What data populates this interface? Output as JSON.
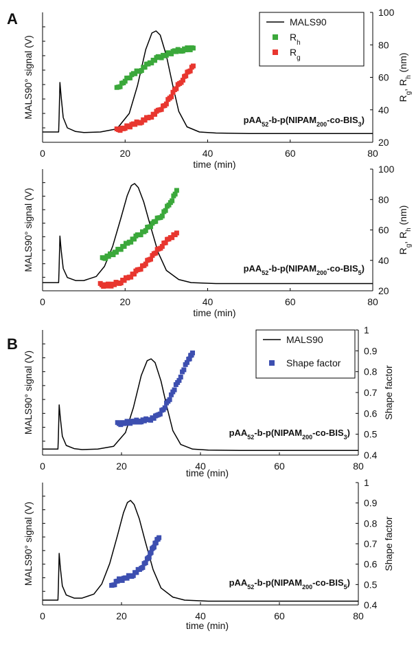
{
  "figure": {
    "panel_letters": [
      "A",
      "B"
    ]
  },
  "chart_data": [
    {
      "type": "line",
      "panel": "A",
      "annotation": {
        "base": "pAA",
        "s1": "52",
        "mid": "-b-p(NIPAM",
        "s2": "200",
        "mid2": "-co-BIS",
        "s3": "3",
        "end": ")"
      },
      "xlabel": "time (min)",
      "ylabel_left": "MALS90° signal (V)",
      "ylabel_right": {
        "a": "R",
        "asub": "g",
        "sep": ", ",
        "b": "R",
        "bsub": "h",
        "unit": " (nm)"
      },
      "xlim": [
        0,
        80
      ],
      "xticks": [
        0,
        20,
        40,
        60,
        80
      ],
      "y_right_lim": [
        20,
        100
      ],
      "y_right_ticks": [
        20,
        40,
        60,
        80,
        100
      ],
      "legend": [
        {
          "label": "MALS90",
          "sub": "",
          "color": "#000000",
          "kind": "line"
        },
        {
          "label": "R",
          "sub": "h",
          "color": "#3ba83b",
          "kind": "square"
        },
        {
          "label": "R",
          "sub": "g",
          "color": "#e8362f",
          "kind": "square"
        }
      ],
      "series": [
        {
          "name": "MALS90",
          "axis": "left",
          "color": "#000000",
          "kind": "line",
          "x": [
            0,
            3.9,
            4.0,
            4.2,
            4.5,
            5,
            6,
            8,
            10,
            14,
            18,
            21,
            23,
            25,
            26.5,
            27.5,
            28.5,
            30,
            31.5,
            33,
            35,
            38,
            42,
            50,
            80
          ],
          "y": [
            0.02,
            0.02,
            0.14,
            0.5,
            0.36,
            0.16,
            0.06,
            0.025,
            0.015,
            0.02,
            0.05,
            0.2,
            0.47,
            0.82,
            0.98,
            1.0,
            0.96,
            0.76,
            0.48,
            0.22,
            0.07,
            0.02,
            0.01,
            0.005,
            0.005
          ]
        },
        {
          "name": "Rh",
          "axis": "right",
          "color": "#3ba83b",
          "kind": "markers",
          "x": [
            18,
            20,
            22,
            24,
            26,
            28,
            30,
            32,
            34,
            36.5
          ],
          "y": [
            53,
            58,
            62,
            65,
            69,
            72,
            74,
            76,
            77,
            78
          ]
        },
        {
          "name": "Rg",
          "axis": "right",
          "color": "#e8362f",
          "kind": "markers",
          "x": [
            18,
            20,
            22,
            24,
            26,
            28,
            30,
            32,
            34,
            36.5
          ],
          "y": [
            27.5,
            29,
            31,
            33,
            35.5,
            39,
            44,
            52,
            59,
            67
          ]
        }
      ]
    },
    {
      "type": "line",
      "panel": "A",
      "annotation": {
        "base": "pAA",
        "s1": "52",
        "mid": "-b-p(NIPAM",
        "s2": "200",
        "mid2": "-co-BIS",
        "s3": "5",
        "end": ")"
      },
      "xlabel": "time (min)",
      "ylabel_left": "MALS90° signal (V)",
      "ylabel_right": {
        "a": "R",
        "asub": "g",
        "sep": ", ",
        "b": "R",
        "bsub": "h",
        "unit": " (nm)"
      },
      "xlim": [
        0,
        80
      ],
      "xticks": [
        0,
        20,
        40,
        60,
        80
      ],
      "y_right_lim": [
        20,
        100
      ],
      "y_right_ticks": [
        20,
        40,
        60,
        80,
        100
      ],
      "legend": [],
      "series": [
        {
          "name": "MALS90",
          "axis": "left",
          "color": "#000000",
          "kind": "line",
          "x": [
            0,
            3.9,
            4.0,
            4.2,
            4.5,
            5,
            6,
            8,
            10,
            13,
            15,
            17,
            19,
            20.5,
            21.5,
            22.3,
            23.2,
            24.5,
            26,
            28,
            30,
            33,
            36,
            42,
            80
          ],
          "y": [
            0.02,
            0.02,
            0.14,
            0.48,
            0.34,
            0.16,
            0.07,
            0.04,
            0.04,
            0.08,
            0.18,
            0.38,
            0.66,
            0.88,
            0.98,
            1.0,
            0.96,
            0.82,
            0.6,
            0.32,
            0.14,
            0.05,
            0.02,
            0.01,
            0.01
          ]
        },
        {
          "name": "Rh",
          "axis": "right",
          "color": "#3ba83b",
          "kind": "markers",
          "x": [
            14.5,
            16,
            17.5,
            19,
            21,
            23,
            25,
            27,
            29,
            31,
            32.5
          ],
          "y": [
            41,
            43,
            45,
            48,
            52,
            56,
            60,
            65,
            70,
            78,
            86
          ]
        },
        {
          "name": "Rg",
          "axis": "right",
          "color": "#e8362f",
          "kind": "markers",
          "x": [
            14,
            15.5,
            17,
            19,
            21,
            23,
            25,
            27,
            29,
            31,
            32.5
          ],
          "y": [
            24,
            23.5,
            24,
            26,
            29,
            33,
            38,
            44,
            50,
            55,
            58
          ]
        }
      ]
    },
    {
      "type": "line",
      "panel": "B",
      "annotation": {
        "base": "pAA",
        "s1": "52",
        "mid": "-b-p(NIPAM",
        "s2": "200",
        "mid2": "-co-BIS",
        "s3": "3",
        "end": ")"
      },
      "xlabel": "time (min)",
      "ylabel_left": "MALS90° signal (V)",
      "ylabel_right": {
        "a": "Shape factor",
        "asub": "",
        "sep": "",
        "b": "",
        "bsub": "",
        "unit": ""
      },
      "xlim": [
        0,
        80
      ],
      "xticks": [
        0,
        20,
        40,
        60,
        80
      ],
      "y_right_lim": [
        0.4,
        1.0
      ],
      "y_right_ticks": [
        "0.4",
        "0.5",
        "0.6",
        "0.7",
        "0.8",
        "0.9",
        "1"
      ],
      "legend": [
        {
          "label": "MALS90",
          "sub": "",
          "color": "#000000",
          "kind": "line"
        },
        {
          "label": "Shape factor",
          "sub": "",
          "color": "#3d4fb0",
          "kind": "square"
        }
      ],
      "series": [
        {
          "name": "MALS90",
          "axis": "left",
          "color": "#000000",
          "kind": "line",
          "x": [
            0,
            3.9,
            4.0,
            4.2,
            4.5,
            5,
            6,
            8,
            10,
            14,
            18,
            21,
            23,
            25,
            26.5,
            27.5,
            28.5,
            30,
            31.5,
            33,
            35,
            38,
            42,
            50,
            80
          ],
          "y": [
            0.02,
            0.02,
            0.14,
            0.5,
            0.36,
            0.16,
            0.06,
            0.025,
            0.015,
            0.02,
            0.05,
            0.2,
            0.47,
            0.82,
            0.98,
            1.0,
            0.96,
            0.76,
            0.48,
            0.22,
            0.07,
            0.02,
            0.01,
            0.005,
            0.005
          ]
        },
        {
          "name": "Shape factor",
          "axis": "right",
          "color": "#3d4fb0",
          "kind": "markers",
          "x": [
            19,
            21,
            23,
            25,
            27,
            29,
            31,
            33,
            35,
            37,
            38
          ],
          "y": [
            0.55,
            0.555,
            0.56,
            0.565,
            0.57,
            0.585,
            0.63,
            0.7,
            0.78,
            0.86,
            0.89
          ]
        }
      ]
    },
    {
      "type": "line",
      "panel": "B",
      "annotation": {
        "base": "pAA",
        "s1": "52",
        "mid": "-b-p(NIPAM",
        "s2": "200",
        "mid2": "-co-BIS",
        "s3": "5",
        "end": ")"
      },
      "xlabel": "time (min)",
      "ylabel_left": "MALS90° signal (V)",
      "ylabel_right": {
        "a": "Shape factor",
        "asub": "",
        "sep": "",
        "b": "",
        "bsub": "",
        "unit": ""
      },
      "xlim": [
        0,
        80
      ],
      "xticks": [
        0,
        20,
        40,
        60,
        80
      ],
      "y_right_lim": [
        0.4,
        1.0
      ],
      "y_right_ticks": [
        "0.4",
        "0.5",
        "0.6",
        "0.7",
        "0.8",
        "0.9",
        "1"
      ],
      "legend": [],
      "series": [
        {
          "name": "MALS90",
          "axis": "left",
          "color": "#000000",
          "kind": "line",
          "x": [
            0,
            3.9,
            4.0,
            4.2,
            4.5,
            5,
            6,
            8,
            10,
            13,
            15,
            17,
            19,
            20.5,
            21.5,
            22.3,
            23.2,
            24.5,
            26,
            28,
            30,
            33,
            36,
            42,
            80
          ],
          "y": [
            0.02,
            0.02,
            0.14,
            0.48,
            0.34,
            0.16,
            0.07,
            0.04,
            0.04,
            0.08,
            0.18,
            0.38,
            0.66,
            0.88,
            0.98,
            1.0,
            0.96,
            0.82,
            0.6,
            0.32,
            0.14,
            0.05,
            0.02,
            0.01,
            0.01
          ]
        },
        {
          "name": "Shape factor",
          "axis": "right",
          "color": "#3d4fb0",
          "kind": "markers",
          "x": [
            17.5,
            19,
            21,
            23,
            25,
            26.5,
            27.5,
            28.5,
            29.5
          ],
          "y": [
            0.49,
            0.52,
            0.53,
            0.55,
            0.58,
            0.62,
            0.66,
            0.7,
            0.73
          ]
        }
      ]
    }
  ]
}
